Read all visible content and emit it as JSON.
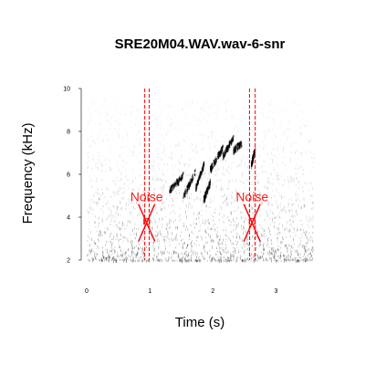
{
  "chart_data": {
    "type": "spectrogram",
    "title": "SRE20M04.WAV.wav-6-snr",
    "xlabel": "Time (s)",
    "ylabel": "Frequency (kHz)",
    "xlim": [
      0,
      3.6
    ],
    "ylim": [
      2,
      10
    ],
    "x_ticks": [
      0,
      1,
      2,
      3
    ],
    "y_ticks": [
      2,
      4,
      6,
      8,
      10
    ],
    "call_segments": [
      {
        "t0": 1.3,
        "t1": 1.52,
        "f0": 5.3,
        "f1": 6.0
      },
      {
        "t0": 1.52,
        "t1": 1.72,
        "f0": 5.0,
        "f1": 6.2
      },
      {
        "t0": 1.72,
        "t1": 1.85,
        "f0": 5.4,
        "f1": 6.5
      },
      {
        "t0": 1.85,
        "t1": 1.95,
        "f0": 4.9,
        "f1": 5.7
      },
      {
        "t0": 1.95,
        "t1": 2.15,
        "f0": 6.3,
        "f1": 7.3
      },
      {
        "t0": 2.15,
        "t1": 2.32,
        "f0": 6.9,
        "f1": 7.8
      },
      {
        "t0": 2.32,
        "t1": 2.45,
        "f0": 7.2,
        "f1": 7.5
      },
      {
        "t0": 2.6,
        "t1": 2.66,
        "f0": 6.5,
        "f1": 7.2
      }
    ],
    "annotations": [
      {
        "label": "Noise",
        "x": 0.95,
        "y": 3.8,
        "x_left": 0.92,
        "x_right": 0.99,
        "color": "#ff0000"
      },
      {
        "label": "Noise",
        "x": 2.62,
        "y": 3.8,
        "x_left": 2.58,
        "x_right": 2.67,
        "color": "#ff0000"
      }
    ],
    "grid": false,
    "colors": {
      "spectrogram": "#000000",
      "annotation": "#ff0000"
    }
  }
}
